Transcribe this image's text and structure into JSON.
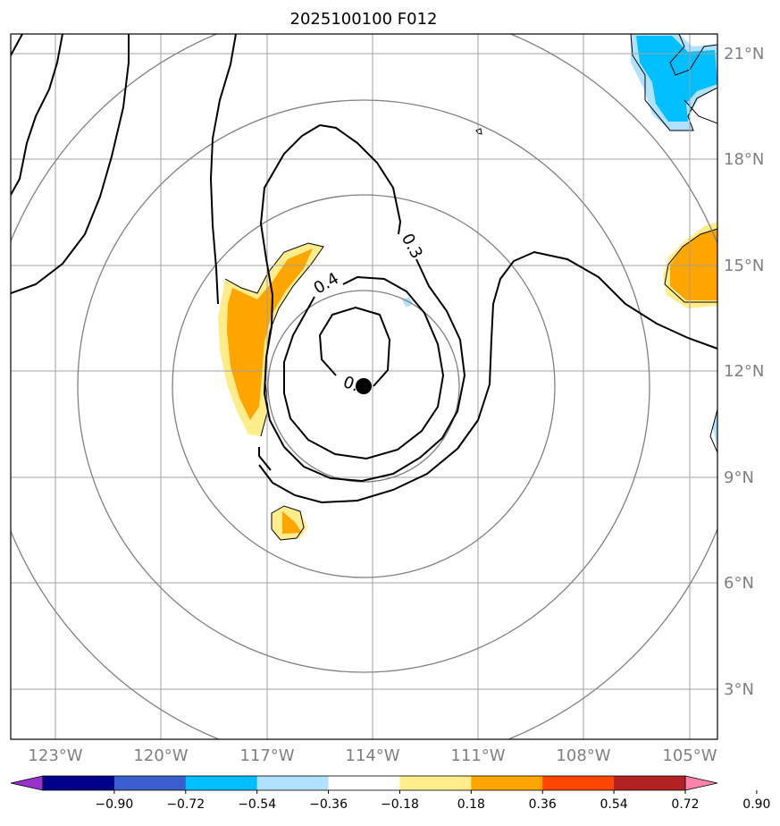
{
  "title": "2025100100 F012",
  "lat_labels": [
    "21°N",
    "18°N",
    "15°N",
    "12°N",
    "9°N",
    "6°N",
    "3°N"
  ],
  "lon_labels": [
    "123°W",
    "120°W",
    "117°W",
    "114°W",
    "111°W",
    "108°W",
    "105°W"
  ],
  "contour_labels": [
    "0.3",
    "0.4",
    "0."
  ],
  "colorbar": {
    "ticks": [
      "−0.90",
      "−0.72",
      "−0.54",
      "−0.36",
      "−0.18",
      "0.18",
      "0.36",
      "0.54",
      "0.72",
      "0.90"
    ],
    "colors": [
      "#9932cc",
      "#00008b",
      "#3a5fcd",
      "#00bfff",
      "#b0e2ff",
      "#ffffff",
      "#ffec8b",
      "#ffa500",
      "#ff4500",
      "#b22222",
      "#ff82ab"
    ]
  },
  "map": {
    "background": "#ffffff",
    "grid_color": "#a0a0a0",
    "range_ring_color": "#808080",
    "center_marker": "storm-center"
  }
}
